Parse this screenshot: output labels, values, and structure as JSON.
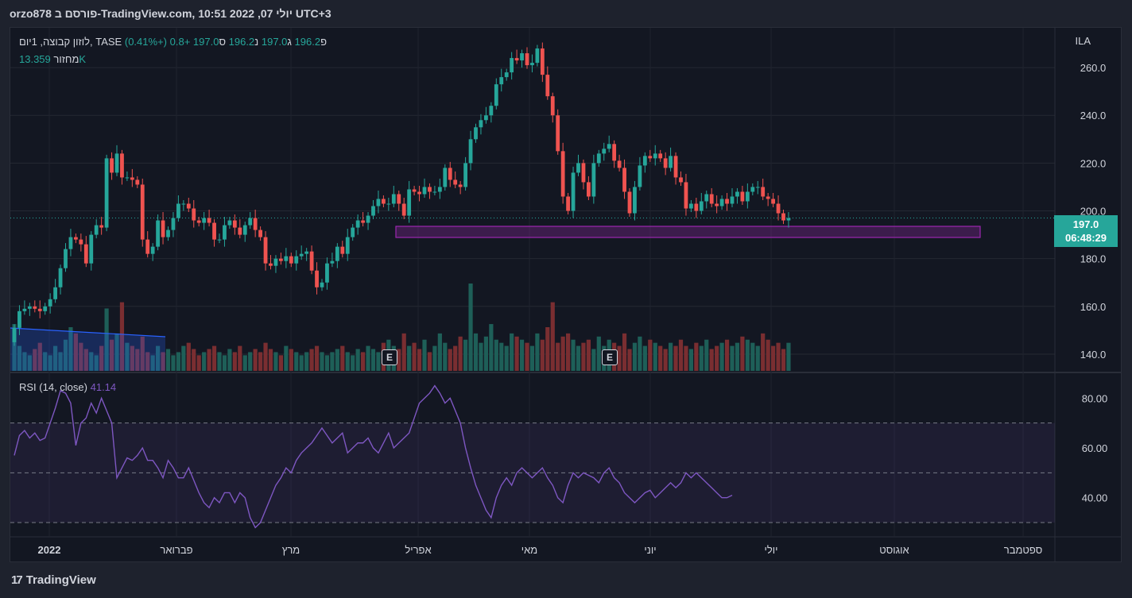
{
  "header": {
    "title": "orzo878 פורסם ב-TradingView.com, יולי 07, 2022 10:51 UTC+3"
  },
  "legend": {
    "symbol": "לוזון קבוצה, 1יום, TASE",
    "o_label": "פ",
    "o_value": "196.2",
    "h_label": "ג",
    "h_value": "197.0",
    "l_label": "נ",
    "l_value": "196.2",
    "c_label": "ס",
    "c_value": "197.0",
    "change": "+0.8 (+0.41%)",
    "volume_label": "מחזור",
    "volume_value": "13.359K"
  },
  "rsi_legend": {
    "label": "RSI (14, close)",
    "value": "41.14"
  },
  "currency": "ILA",
  "price_tag": {
    "price": "197.0",
    "countdown": "06:48:29"
  },
  "earnings_badge": "E",
  "footer": {
    "brand": "TradingView",
    "logo": "17"
  },
  "colors": {
    "up": "#26a69a",
    "down": "#ef5350",
    "rsi": "#7e57c2",
    "zone": "#9c27b0",
    "trend": "#2962ff"
  },
  "chart_data": [
    {
      "type": "candlestick",
      "yticks": [
        140,
        160,
        180,
        200,
        220,
        240,
        260
      ],
      "ytick_labels": [
        "140.0",
        "160.0",
        "180.0",
        "200.0",
        "220.0",
        "240.0",
        "260.0"
      ],
      "ylim": [
        133,
        275
      ],
      "xtick_labels": [
        "2022",
        "פברואר",
        "מרץ",
        "אפריל",
        "מאי",
        "יוני",
        "יולי",
        "אוגוסט",
        "ספטמבר"
      ],
      "closes": [
        151,
        158,
        159,
        160,
        159,
        158,
        160,
        163,
        168,
        176,
        184,
        189,
        188,
        186,
        178,
        190,
        194,
        193,
        222,
        216,
        224,
        214,
        214,
        213,
        211,
        188,
        182,
        185,
        196,
        189,
        192,
        197,
        203,
        203,
        201,
        196,
        195,
        197,
        195,
        188,
        188,
        194,
        196,
        193,
        190,
        194,
        197,
        192,
        189,
        178,
        177,
        180,
        179,
        181,
        178,
        181,
        182,
        183,
        175,
        168,
        170,
        178,
        179,
        185,
        182,
        189,
        193,
        196,
        195,
        198,
        202,
        205,
        203,
        203,
        207,
        203,
        198,
        209,
        208,
        207,
        210,
        208,
        208,
        210,
        218,
        213,
        211,
        210,
        220,
        230,
        235,
        238,
        240,
        244,
        253,
        256,
        258,
        264,
        263,
        266,
        261,
        262,
        268,
        257,
        248,
        240,
        225,
        206,
        200,
        216,
        220,
        212,
        206,
        220,
        224,
        226,
        228,
        221,
        218,
        208,
        199,
        210,
        219,
        223,
        222,
        224,
        222,
        218,
        223,
        214,
        212,
        201,
        203,
        200,
        204,
        207,
        203,
        202,
        205,
        203,
        206,
        208,
        204,
        208,
        210,
        210,
        206,
        205,
        203,
        199,
        196,
        197
      ],
      "opens": [
        145,
        151,
        158,
        159,
        160,
        159,
        158,
        160,
        163,
        168,
        176,
        184,
        189,
        188,
        186,
        178,
        190,
        194,
        193,
        222,
        216,
        224,
        214,
        214,
        213,
        211,
        188,
        182,
        185,
        196,
        189,
        192,
        197,
        203,
        203,
        201,
        196,
        195,
        197,
        195,
        188,
        188,
        194,
        196,
        193,
        190,
        194,
        197,
        192,
        189,
        178,
        177,
        180,
        179,
        181,
        178,
        181,
        182,
        183,
        175,
        168,
        170,
        178,
        179,
        185,
        182,
        189,
        193,
        196,
        195,
        198,
        202,
        205,
        203,
        203,
        207,
        203,
        198,
        209,
        208,
        207,
        210,
        208,
        208,
        210,
        218,
        213,
        211,
        210,
        220,
        230,
        235,
        238,
        240,
        244,
        253,
        256,
        258,
        264,
        263,
        266,
        261,
        262,
        268,
        257,
        248,
        240,
        225,
        206,
        200,
        216,
        220,
        212,
        206,
        220,
        224,
        226,
        228,
        221,
        218,
        208,
        199,
        210,
        219,
        223,
        222,
        224,
        222,
        218,
        223,
        214,
        212,
        201,
        203,
        200,
        204,
        207,
        203,
        202,
        205,
        203,
        206,
        208,
        204,
        208,
        210,
        210,
        206,
        205,
        203,
        199,
        196
      ],
      "volumes": [
        15,
        8,
        6,
        5,
        7,
        9,
        6,
        5,
        8,
        6,
        10,
        14,
        12,
        9,
        7,
        6,
        5,
        8,
        20,
        10,
        12,
        22,
        9,
        8,
        7,
        11,
        6,
        5,
        8,
        6,
        7,
        5,
        6,
        8,
        9,
        7,
        5,
        6,
        7,
        8,
        6,
        5,
        7,
        6,
        8,
        5,
        6,
        7,
        6,
        9,
        7,
        6,
        5,
        8,
        7,
        6,
        5,
        6,
        7,
        8,
        6,
        5,
        6,
        7,
        8,
        6,
        5,
        7,
        6,
        8,
        7,
        6,
        9,
        10,
        8,
        7,
        12,
        8,
        9,
        7,
        10,
        6,
        8,
        12,
        9,
        7,
        8,
        11,
        10,
        28,
        12,
        9,
        11,
        15,
        10,
        9,
        8,
        12,
        11,
        10,
        9,
        8,
        12,
        10,
        14,
        22,
        9,
        11,
        12,
        10,
        8,
        9,
        10,
        7,
        11,
        8,
        10,
        9,
        8,
        12,
        7,
        9,
        11,
        8,
        10,
        9,
        8,
        7,
        9,
        8,
        10,
        8,
        7,
        9,
        8,
        10,
        7,
        8,
        9,
        10,
        8,
        9,
        11,
        10,
        9,
        8,
        12,
        10,
        8,
        9,
        7,
        9
      ]
    },
    {
      "type": "line",
      "name": "RSI (14, close)",
      "yticks": [
        40,
        60,
        80
      ],
      "ytick_labels": [
        "40.00",
        "60.00",
        "80.00"
      ],
      "bands": [
        30,
        50,
        70
      ],
      "ylim": [
        23,
        90
      ],
      "values": [
        57,
        65,
        67,
        64,
        66,
        63,
        64,
        70,
        76,
        83,
        82,
        78,
        61,
        70,
        72,
        78,
        74,
        80,
        75,
        70,
        48,
        52,
        56,
        55,
        57,
        60,
        55,
        55,
        52,
        48,
        55,
        52,
        48,
        48,
        52,
        47,
        42,
        38,
        36,
        40,
        38,
        42,
        42,
        38,
        42,
        40,
        32,
        28,
        30,
        35,
        40,
        45,
        48,
        52,
        50,
        55,
        58,
        60,
        62,
        65,
        68,
        65,
        62,
        64,
        66,
        58,
        60,
        62,
        62,
        64,
        60,
        58,
        62,
        66,
        60,
        62,
        64,
        66,
        72,
        78,
        80,
        82,
        85,
        82,
        78,
        80,
        75,
        70,
        60,
        52,
        45,
        40,
        35,
        32,
        40,
        45,
        48,
        45,
        50,
        52,
        50,
        48,
        50,
        52,
        48,
        45,
        40,
        38,
        45,
        50,
        48,
        50,
        49,
        48,
        46,
        50,
        52,
        48,
        46,
        42,
        40,
        38,
        40,
        42,
        43,
        40,
        42,
        44,
        46,
        44,
        46,
        50,
        48,
        50,
        48,
        46,
        44,
        42,
        40,
        40,
        41
      ]
    }
  ]
}
